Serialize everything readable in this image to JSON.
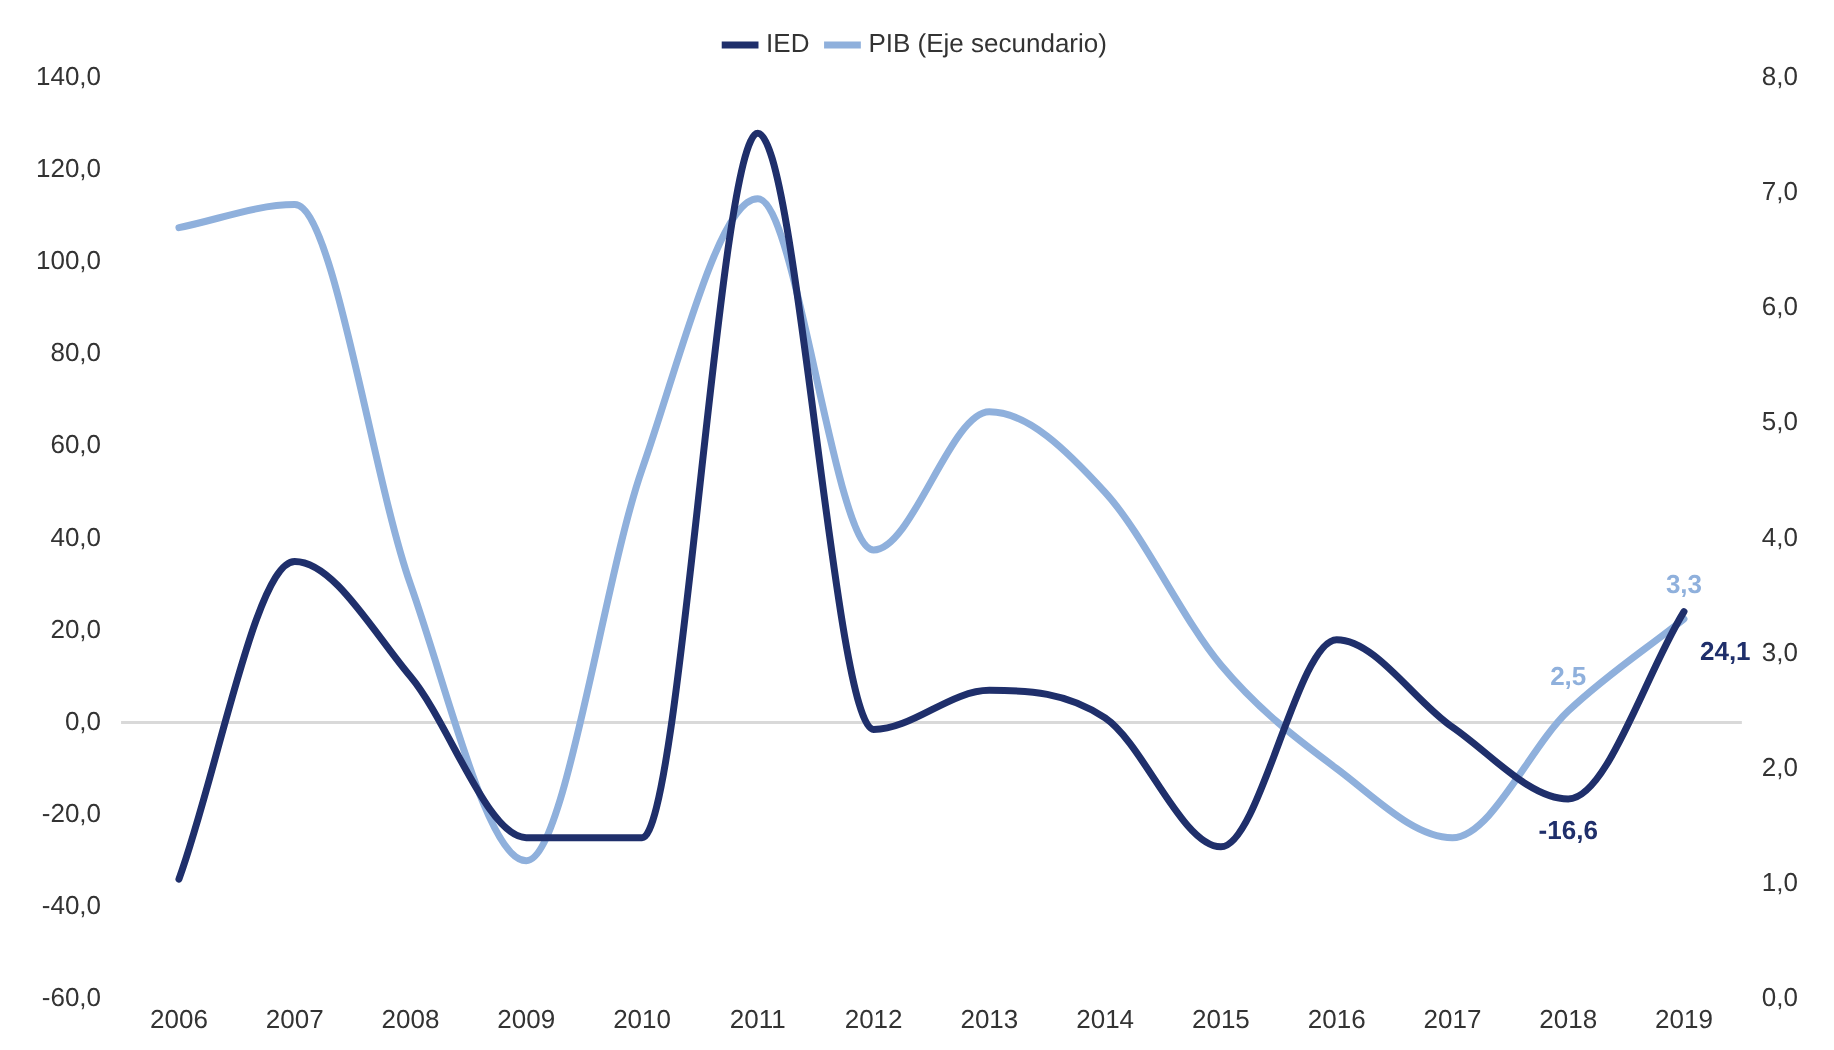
{
  "chart_data": {
    "type": "line",
    "categories": [
      "2006",
      "2007",
      "2008",
      "2009",
      "2010",
      "2011",
      "2012",
      "2013",
      "2014",
      "2015",
      "2016",
      "2017",
      "2018",
      "2019"
    ],
    "series": [
      {
        "name": "IED",
        "color": "#1f2f6b",
        "values": [
          -34,
          35,
          10,
          -25,
          -25,
          128,
          -1.5,
          7,
          1,
          -27,
          18,
          -1,
          -16.6,
          24.1
        ],
        "value_labels": [
          null,
          null,
          null,
          null,
          null,
          null,
          null,
          null,
          null,
          null,
          null,
          null,
          "-16,6",
          "24,1"
        ]
      },
      {
        "name": "PIB (Eje secundario)",
        "color": "#8fb0dc",
        "axis": "y2",
        "values": [
          6.7,
          6.9,
          3.6,
          1.2,
          4.6,
          6.95,
          3.9,
          5.1,
          4.4,
          2.9,
          2.0,
          1.4,
          2.5,
          3.3
        ],
        "value_labels": [
          null,
          null,
          null,
          null,
          null,
          null,
          null,
          null,
          null,
          null,
          null,
          null,
          "2,5",
          "3,3"
        ]
      }
    ],
    "ylim": [
      -60,
      140
    ],
    "yticks": [
      {
        "value": -60,
        "label": "-60,0"
      },
      {
        "value": -40,
        "label": "-40,0"
      },
      {
        "value": -20,
        "label": "-20,0"
      },
      {
        "value": 0,
        "label": "0,0"
      },
      {
        "value": 20,
        "label": "20,0"
      },
      {
        "value": 40,
        "label": "40,0"
      },
      {
        "value": 60,
        "label": "60,0"
      },
      {
        "value": 80,
        "label": "80,0"
      },
      {
        "value": 100,
        "label": "100,0"
      },
      {
        "value": 120,
        "label": "120,0"
      },
      {
        "value": 140,
        "label": "140,0"
      }
    ],
    "y2lim": [
      0,
      8
    ],
    "y2ticks": [
      {
        "value": 0,
        "label": "0,0"
      },
      {
        "value": 1,
        "label": "1,0"
      },
      {
        "value": 2,
        "label": "2,0"
      },
      {
        "value": 3,
        "label": "3,0"
      },
      {
        "value": 4,
        "label": "4,0"
      },
      {
        "value": 5,
        "label": "5,0"
      },
      {
        "value": 6,
        "label": "6,0"
      },
      {
        "value": 7,
        "label": "7,0"
      },
      {
        "value": 8,
        "label": "8,0"
      }
    ],
    "ref_lines": [
      {
        "axis": "y",
        "value": 0,
        "color": "#d9d9d9"
      }
    ],
    "grid": false,
    "legend": "top",
    "marker": "none"
  }
}
